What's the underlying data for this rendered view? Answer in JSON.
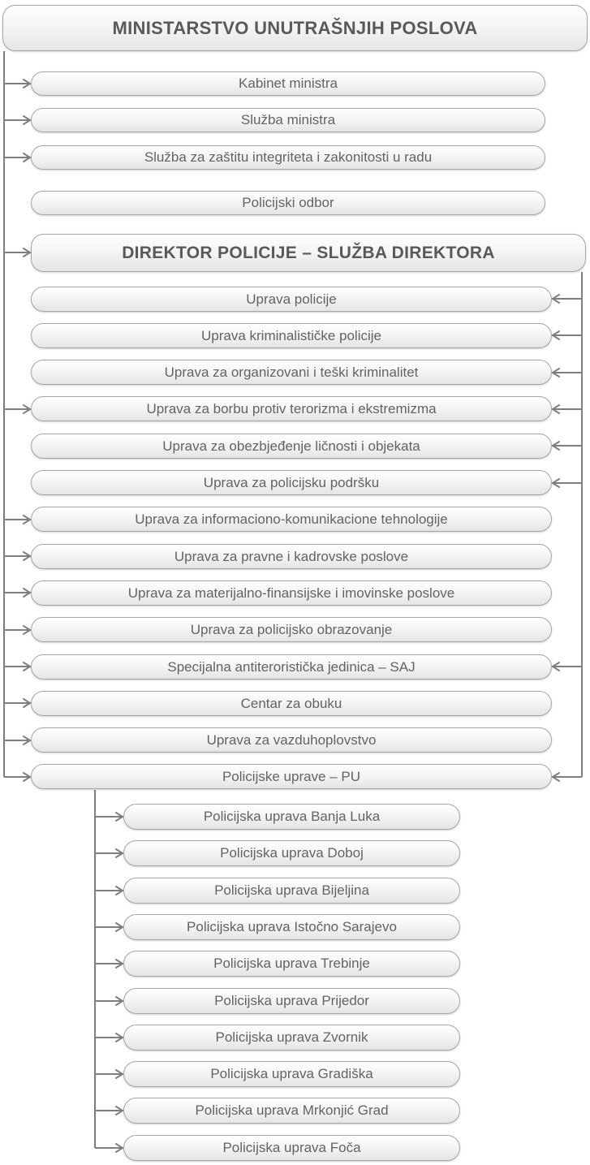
{
  "title": "MINISTARSTVO UNUTRAŠNJIH POSLOVA",
  "ministry_units": [
    {
      "label": "Kabinet ministra",
      "left_arrow": true
    },
    {
      "label": "Služba ministra",
      "left_arrow": true
    },
    {
      "label": "Služba za zaštitu integriteta i zakonitosti u radu",
      "left_arrow": true
    },
    {
      "label": "Policijski odbor",
      "left_arrow": false
    }
  ],
  "director_title": "DIREKTOR POLICIJE – SLUŽBA DIREKTORA",
  "director_left_arrow": true,
  "directorates": [
    {
      "label": "Uprava policije",
      "left_arrow": false,
      "right_arrow": true
    },
    {
      "label": "Uprava kriminalističke policije",
      "left_arrow": false,
      "right_arrow": true
    },
    {
      "label": "Uprava za organizovani i teški kriminalitet",
      "left_arrow": false,
      "right_arrow": true
    },
    {
      "label": "Uprava za borbu protiv terorizma i ekstremizma",
      "left_arrow": true,
      "right_arrow": true
    },
    {
      "label": "Uprava za obezbjeđenje ličnosti i objekata",
      "left_arrow": false,
      "right_arrow": true
    },
    {
      "label": "Uprava za policijsku podršku",
      "left_arrow": false,
      "right_arrow": true
    },
    {
      "label": "Uprava za informaciono-komunikacione tehnologije",
      "left_arrow": true,
      "right_arrow": false
    },
    {
      "label": "Uprava za pravne i kadrovske poslove",
      "left_arrow": true,
      "right_arrow": false
    },
    {
      "label": "Uprava za materijalno-finansijske i imovinske poslove",
      "left_arrow": true,
      "right_arrow": false
    },
    {
      "label": "Uprava za policijsko obrazovanje",
      "left_arrow": true,
      "right_arrow": false
    },
    {
      "label": "Specijalna antiteroristička jedinica – SAJ",
      "left_arrow": true,
      "right_arrow": true
    },
    {
      "label": "Centar za obuku",
      "left_arrow": true,
      "right_arrow": false
    },
    {
      "label": "Uprava za vazduhoplovstvo",
      "left_arrow": true,
      "right_arrow": false
    },
    {
      "label": "Policijske uprave – PU",
      "left_arrow": true,
      "right_arrow": true
    }
  ],
  "police_departments": [
    "Policijska uprava Banja Luka",
    "Policijska uprava Doboj",
    "Policijska uprava Bijeljina",
    "Policijska uprava Istočno Sarajevo",
    "Policijska uprava Trebinje",
    "Policijska uprava Prijedor",
    "Policijska uprava Zvornik",
    "Policijska uprava Gradiška",
    "Policijska uprava Mrkonjić Grad",
    "Policijska uprava Foča"
  ],
  "colors": {
    "box_border": "#a6a6a6",
    "box_fill_top": "#fefefe",
    "box_fill_bottom": "#e5e5e5",
    "text": "#636363",
    "heading_text": "#595959",
    "connector": "#7f7f7f"
  }
}
